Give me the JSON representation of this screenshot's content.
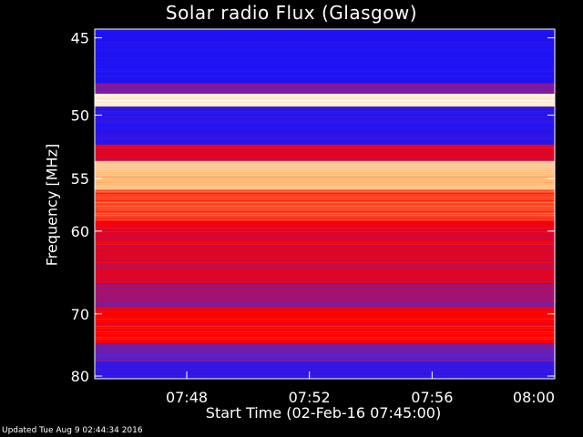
{
  "chart_data": {
    "type": "heatmap",
    "title": "Solar radio Flux (Glasgow)",
    "ylabel": "Frequency [MHz]",
    "xlabel": "Start Time (02-Feb-16 07:45:00)",
    "y_ticks": [
      45,
      50,
      55,
      60,
      70,
      80
    ],
    "x_ticks": [
      "07:48",
      "07:52",
      "07:56",
      "08:00"
    ],
    "x_tick_minutes": [
      3,
      7,
      11,
      15
    ],
    "x_range_minutes": [
      0,
      15
    ],
    "y_range_mhz": [
      44.5,
      80.5
    ],
    "y_scale": "reciprocal",
    "colormap": [
      "#1010ff",
      "#6020c0",
      "#ff0000",
      "#ffb060",
      "#ffffff"
    ],
    "bands": [
      {
        "from": 44.5,
        "to": 47.8,
        "level": 0.05
      },
      {
        "from": 47.8,
        "to": 48.5,
        "level": 0.3
      },
      {
        "from": 48.5,
        "to": 49.4,
        "level": 0.95
      },
      {
        "from": 49.4,
        "to": 52.2,
        "level": 0.08
      },
      {
        "from": 52.2,
        "to": 53.5,
        "level": 0.45
      },
      {
        "from": 53.5,
        "to": 56.0,
        "level": 0.8
      },
      {
        "from": 56.0,
        "to": 59.0,
        "level": 0.6
      },
      {
        "from": 59.0,
        "to": 66.0,
        "level": 0.45
      },
      {
        "from": 66.0,
        "to": 69.0,
        "level": 0.35
      },
      {
        "from": 69.0,
        "to": 74.5,
        "level": 0.5
      },
      {
        "from": 74.5,
        "to": 77.5,
        "level": 0.25
      },
      {
        "from": 77.5,
        "to": 80.5,
        "level": 0.1
      }
    ]
  },
  "updated_text": "Updated Tue Aug  9 02:44:34 2016"
}
